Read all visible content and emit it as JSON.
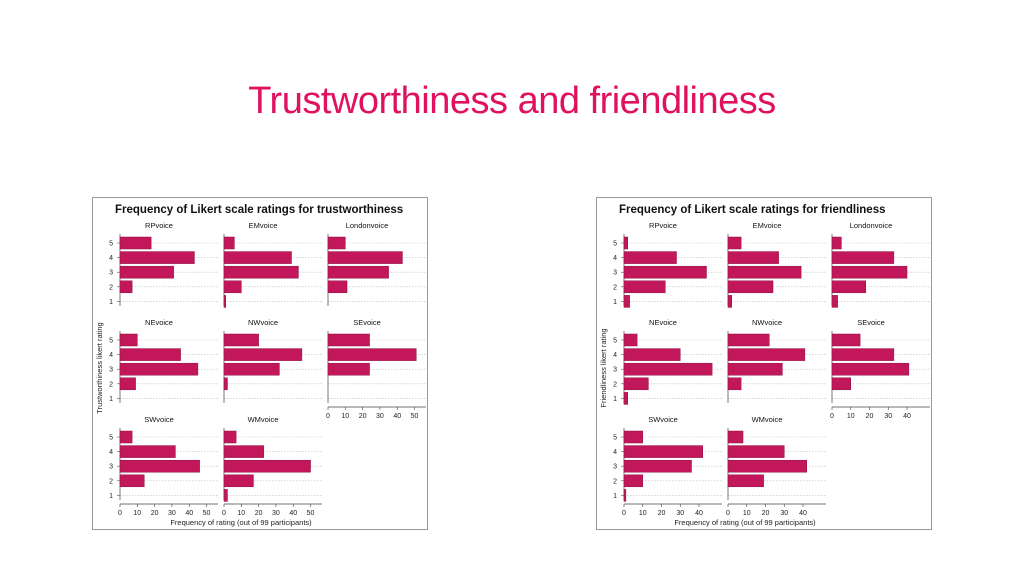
{
  "slide": {
    "title": "Trustworthiness and friendliness"
  },
  "colors": {
    "title": "#e0115f",
    "bar": "#c2185b",
    "bar_stroke": "#8e0f43",
    "grid": "#bdbdbd"
  },
  "chart_data": [
    {
      "type": "bar",
      "orientation": "horizontal",
      "title": "Frequency of Likert scale ratings for trustworthiness",
      "ylabel": "Trustworthiness likert rating",
      "xlabel": "Frequency of rating (out of 99 participants)",
      "categories": [
        "1",
        "2",
        "3",
        "4",
        "5"
      ],
      "xlim": [
        0,
        52
      ],
      "xticks": [
        "0",
        "10",
        "20",
        "30",
        "40",
        "50"
      ],
      "grid": true,
      "panels": [
        {
          "name": "RPvoice",
          "values": [
            0,
            7,
            31,
            43,
            18
          ]
        },
        {
          "name": "EMvoice",
          "values": [
            1,
            10,
            43,
            39,
            6
          ]
        },
        {
          "name": "Londonvoice",
          "values": [
            0,
            11,
            35,
            43,
            10
          ]
        },
        {
          "name": "NEvoice",
          "values": [
            0,
            9,
            45,
            35,
            10
          ]
        },
        {
          "name": "NWvoice",
          "values": [
            0,
            2,
            32,
            45,
            20
          ]
        },
        {
          "name": "SEvoice",
          "values": [
            0,
            0,
            24,
            51,
            24
          ]
        },
        {
          "name": "SWvoice",
          "values": [
            0,
            14,
            46,
            32,
            7
          ]
        },
        {
          "name": "WMvoice",
          "values": [
            2,
            17,
            50,
            23,
            7
          ]
        }
      ]
    },
    {
      "type": "bar",
      "orientation": "horizontal",
      "title": "Frequency of Likert scale ratings for friendliness",
      "ylabel": "Friendliness likert rating",
      "xlabel": "Frequency of rating (out of 99 participants)",
      "categories": [
        "1",
        "2",
        "3",
        "4",
        "5"
      ],
      "xlim": [
        0,
        48
      ],
      "xticks": [
        "0",
        "10",
        "20",
        "30",
        "40"
      ],
      "grid": true,
      "panels": [
        {
          "name": "RPvoice",
          "values": [
            3,
            22,
            44,
            28,
            2
          ]
        },
        {
          "name": "EMvoice",
          "values": [
            2,
            24,
            39,
            27,
            7
          ]
        },
        {
          "name": "Londonvoice",
          "values": [
            3,
            18,
            40,
            33,
            5
          ]
        },
        {
          "name": "NEvoice",
          "values": [
            2,
            13,
            47,
            30,
            7
          ]
        },
        {
          "name": "NWvoice",
          "values": [
            0,
            7,
            29,
            41,
            22
          ]
        },
        {
          "name": "SEvoice",
          "values": [
            0,
            10,
            41,
            33,
            15
          ]
        },
        {
          "name": "SWvoice",
          "values": [
            1,
            10,
            36,
            42,
            10
          ]
        },
        {
          "name": "WMvoice",
          "values": [
            0,
            19,
            42,
            30,
            8
          ]
        }
      ]
    }
  ]
}
